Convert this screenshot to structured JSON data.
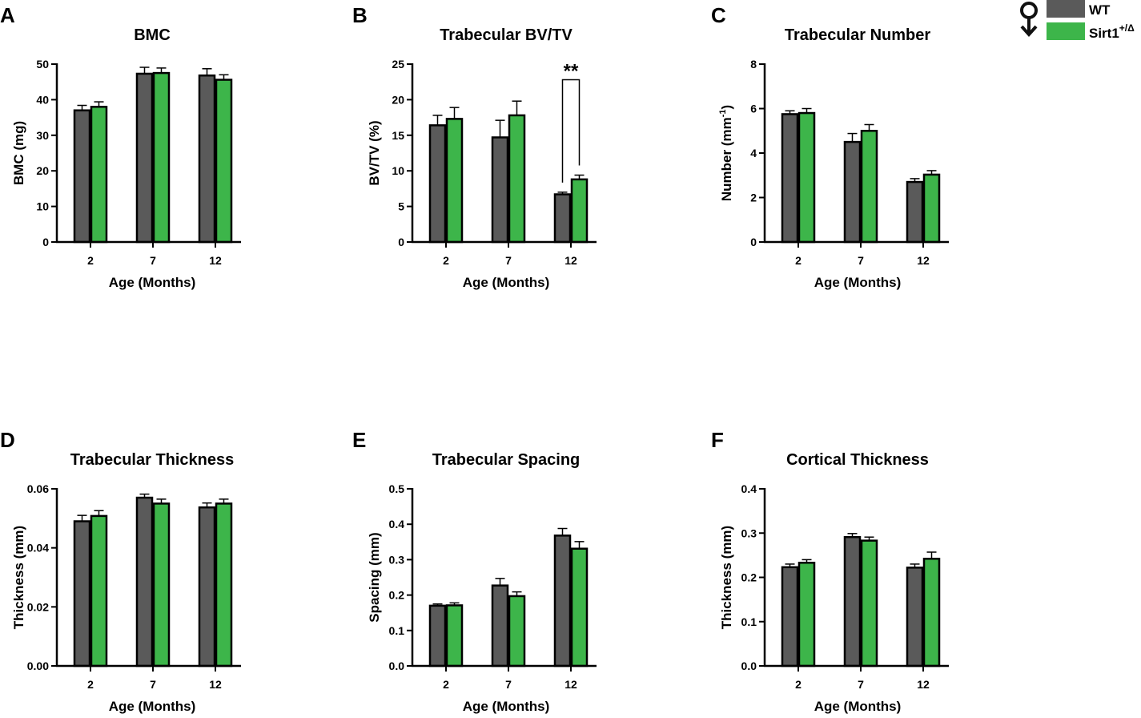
{
  "legend": {
    "symbol_name": "female-symbol",
    "items": [
      {
        "label": "WT",
        "color": "#5a5a5a"
      },
      {
        "label": "Sirt1",
        "sup": "+/Δ",
        "color": "#3db54a"
      }
    ]
  },
  "chart_data": [
    {
      "panel": "A",
      "type": "bar",
      "title": "BMC",
      "xlabel": "Age (Months)",
      "ylabel": "BMC (mg)",
      "ylabel_sup": "",
      "ylabel_tail": "",
      "categories": [
        "2",
        "7",
        "12"
      ],
      "ylim": [
        0,
        50
      ],
      "yticks": [
        "0",
        "10",
        "20",
        "30",
        "40",
        "50"
      ],
      "series": [
        {
          "name": "WT",
          "values": [
            37,
            47.3,
            46.8
          ],
          "errors": [
            1.4,
            1.8,
            1.9
          ]
        },
        {
          "name": "Sirt1+/Δ",
          "values": [
            38,
            47.5,
            45.6
          ],
          "errors": [
            1.4,
            1.4,
            1.4
          ]
        }
      ]
    },
    {
      "panel": "B",
      "type": "bar",
      "title": "Trabecular BV/TV",
      "xlabel": "Age (Months)",
      "ylabel": "BV/TV (%)",
      "ylabel_sup": "",
      "ylabel_tail": "",
      "categories": [
        "2",
        "7",
        "12"
      ],
      "ylim": [
        0,
        25
      ],
      "yticks": [
        "0",
        "5",
        "10",
        "15",
        "20",
        "25"
      ],
      "series": [
        {
          "name": "WT",
          "values": [
            16.4,
            14.7,
            6.7
          ],
          "errors": [
            1.4,
            2.4,
            0.3
          ]
        },
        {
          "name": "Sirt1+/Δ",
          "values": [
            17.3,
            17.8,
            8.8
          ],
          "errors": [
            1.6,
            2.0,
            0.6
          ]
        }
      ],
      "significance": {
        "category": "12",
        "label": "**",
        "bracket_top": 22.8
      }
    },
    {
      "panel": "C",
      "type": "bar",
      "title": "Trabecular Number",
      "xlabel": "Age (Months)",
      "ylabel": "Number (mm",
      "ylabel_sup": "-1",
      "ylabel_tail": ")",
      "categories": [
        "2",
        "7",
        "12"
      ],
      "ylim": [
        0,
        8
      ],
      "yticks": [
        "0",
        "2",
        "4",
        "6",
        "8"
      ],
      "series": [
        {
          "name": "WT",
          "values": [
            5.75,
            4.5,
            2.7
          ],
          "errors": [
            0.15,
            0.38,
            0.15
          ]
        },
        {
          "name": "Sirt1+/Δ",
          "values": [
            5.8,
            5.0,
            3.03
          ],
          "errors": [
            0.2,
            0.28,
            0.18
          ]
        }
      ]
    },
    {
      "panel": "D",
      "type": "bar",
      "title": "Trabecular Thickness",
      "xlabel": "Age (Months)",
      "ylabel": "Thickness (mm)",
      "ylabel_sup": "",
      "ylabel_tail": "",
      "categories": [
        "2",
        "7",
        "12"
      ],
      "ylim": [
        0,
        0.06
      ],
      "yticks": [
        "0.00",
        "0.02",
        "0.04",
        "0.06"
      ],
      "series": [
        {
          "name": "WT",
          "values": [
            0.049,
            0.057,
            0.0537
          ],
          "errors": [
            0.002,
            0.0012,
            0.0015
          ]
        },
        {
          "name": "Sirt1+/Δ",
          "values": [
            0.0508,
            0.055,
            0.055
          ],
          "errors": [
            0.0018,
            0.0015,
            0.0015
          ]
        }
      ]
    },
    {
      "panel": "E",
      "type": "bar",
      "title": "Trabecular Spacing",
      "xlabel": "Age (Months)",
      "ylabel": "Spacing (mm)",
      "ylabel_sup": "",
      "ylabel_tail": "",
      "categories": [
        "2",
        "7",
        "12"
      ],
      "ylim": [
        0,
        0.5
      ],
      "yticks": [
        "0.0",
        "0.1",
        "0.2",
        "0.3",
        "0.4",
        "0.5"
      ],
      "series": [
        {
          "name": "WT",
          "values": [
            0.17,
            0.227,
            0.368
          ],
          "errors": [
            0.005,
            0.02,
            0.02
          ]
        },
        {
          "name": "Sirt1+/Δ",
          "values": [
            0.171,
            0.197,
            0.331
          ],
          "errors": [
            0.007,
            0.012,
            0.02
          ]
        }
      ]
    },
    {
      "panel": "F",
      "type": "bar",
      "title": "Cortical Thickness",
      "xlabel": "Age (Months)",
      "ylabel": "Thickness (mm)",
      "ylabel_sup": "",
      "ylabel_tail": "",
      "categories": [
        "2",
        "7",
        "12"
      ],
      "ylim": [
        0,
        0.4
      ],
      "yticks": [
        "0.0",
        "0.1",
        "0.2",
        "0.3",
        "0.4"
      ],
      "series": [
        {
          "name": "WT",
          "values": [
            0.223,
            0.291,
            0.222
          ],
          "errors": [
            0.007,
            0.008,
            0.008
          ]
        },
        {
          "name": "Sirt1+/Δ",
          "values": [
            0.233,
            0.283,
            0.242
          ],
          "errors": [
            0.007,
            0.008,
            0.015
          ]
        }
      ]
    }
  ]
}
